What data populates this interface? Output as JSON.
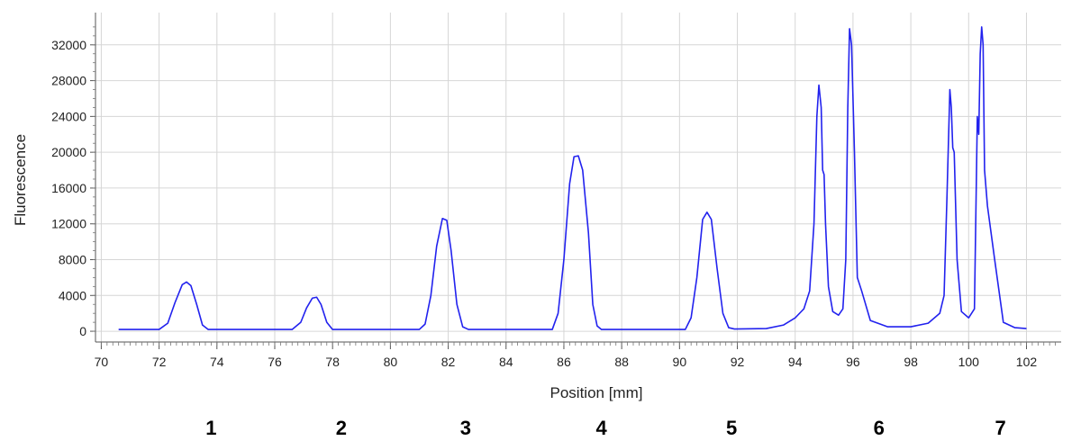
{
  "chart_data": {
    "type": "line",
    "title": "",
    "xlabel": "Position [mm]",
    "ylabel": "Fluorescence",
    "xlim": [
      69.8,
      103.2
    ],
    "ylim": [
      -1200,
      35600
    ],
    "x_ticks": [
      70,
      72,
      74,
      76,
      78,
      80,
      82,
      84,
      86,
      88,
      90,
      92,
      94,
      96,
      98,
      100,
      102
    ],
    "y_ticks": [
      0,
      4000,
      8000,
      12000,
      16000,
      20000,
      24000,
      28000,
      32000
    ],
    "grid": true,
    "series": [
      {
        "color": "#2222ee",
        "points": [
          [
            70.6,
            200
          ],
          [
            72.0,
            200
          ],
          [
            72.3,
            900
          ],
          [
            72.55,
            3200
          ],
          [
            72.8,
            5200
          ],
          [
            72.95,
            5500
          ],
          [
            73.1,
            5100
          ],
          [
            73.3,
            3000
          ],
          [
            73.5,
            700
          ],
          [
            73.7,
            200
          ],
          [
            76.6,
            200
          ],
          [
            76.9,
            1000
          ],
          [
            77.1,
            2600
          ],
          [
            77.3,
            3700
          ],
          [
            77.45,
            3800
          ],
          [
            77.6,
            3000
          ],
          [
            77.8,
            1000
          ],
          [
            78.0,
            200
          ],
          [
            81.0,
            200
          ],
          [
            81.2,
            800
          ],
          [
            81.4,
            4000
          ],
          [
            81.6,
            9500
          ],
          [
            81.8,
            12600
          ],
          [
            81.95,
            12400
          ],
          [
            82.1,
            9000
          ],
          [
            82.3,
            3000
          ],
          [
            82.5,
            500
          ],
          [
            82.7,
            200
          ],
          [
            85.6,
            200
          ],
          [
            85.8,
            2000
          ],
          [
            86.0,
            8000
          ],
          [
            86.2,
            16500
          ],
          [
            86.35,
            19500
          ],
          [
            86.5,
            19600
          ],
          [
            86.65,
            18000
          ],
          [
            86.85,
            11000
          ],
          [
            87.0,
            3000
          ],
          [
            87.15,
            600
          ],
          [
            87.3,
            200
          ],
          [
            90.2,
            200
          ],
          [
            90.4,
            1500
          ],
          [
            90.6,
            6000
          ],
          [
            90.8,
            12500
          ],
          [
            90.95,
            13300
          ],
          [
            91.1,
            12500
          ],
          [
            91.3,
            7000
          ],
          [
            91.5,
            2000
          ],
          [
            91.7,
            400
          ],
          [
            91.9,
            250
          ],
          [
            93.0,
            300
          ],
          [
            93.6,
            700
          ],
          [
            94.0,
            1500
          ],
          [
            94.3,
            2500
          ],
          [
            94.5,
            4500
          ],
          [
            94.65,
            12000
          ],
          [
            94.75,
            24000
          ],
          [
            94.82,
            27500
          ],
          [
            94.9,
            25000
          ],
          [
            94.95,
            18000
          ],
          [
            95.0,
            17500
          ],
          [
            95.05,
            12000
          ],
          [
            95.15,
            5000
          ],
          [
            95.3,
            2200
          ],
          [
            95.5,
            1800
          ],
          [
            95.65,
            2500
          ],
          [
            95.75,
            8000
          ],
          [
            95.82,
            25000
          ],
          [
            95.88,
            33800
          ],
          [
            95.95,
            32000
          ],
          [
            96.05,
            20000
          ],
          [
            96.15,
            6000
          ],
          [
            96.3,
            4500
          ],
          [
            96.6,
            1200
          ],
          [
            97.2,
            500
          ],
          [
            98.0,
            500
          ],
          [
            98.6,
            900
          ],
          [
            99.0,
            2000
          ],
          [
            99.15,
            4000
          ],
          [
            99.25,
            15000
          ],
          [
            99.35,
            27000
          ],
          [
            99.4,
            25000
          ],
          [
            99.45,
            20500
          ],
          [
            99.5,
            20000
          ],
          [
            99.6,
            8000
          ],
          [
            99.75,
            2200
          ],
          [
            100.0,
            1500
          ],
          [
            100.2,
            2500
          ],
          [
            100.3,
            24000
          ],
          [
            100.35,
            22000
          ],
          [
            100.4,
            31000
          ],
          [
            100.45,
            34000
          ],
          [
            100.5,
            32000
          ],
          [
            100.55,
            18000
          ],
          [
            100.65,
            14000
          ],
          [
            100.9,
            8000
          ],
          [
            101.2,
            1000
          ],
          [
            101.6,
            400
          ],
          [
            102.0,
            300
          ]
        ]
      }
    ]
  },
  "lane_labels": [
    {
      "label": "1",
      "x": 73.8
    },
    {
      "label": "2",
      "x": 78.3
    },
    {
      "label": "3",
      "x": 82.6
    },
    {
      "label": "4",
      "x": 87.3
    },
    {
      "label": "5",
      "x": 91.8
    },
    {
      "label": "6",
      "x": 96.9
    },
    {
      "label": "7",
      "x": 101.1
    }
  ]
}
